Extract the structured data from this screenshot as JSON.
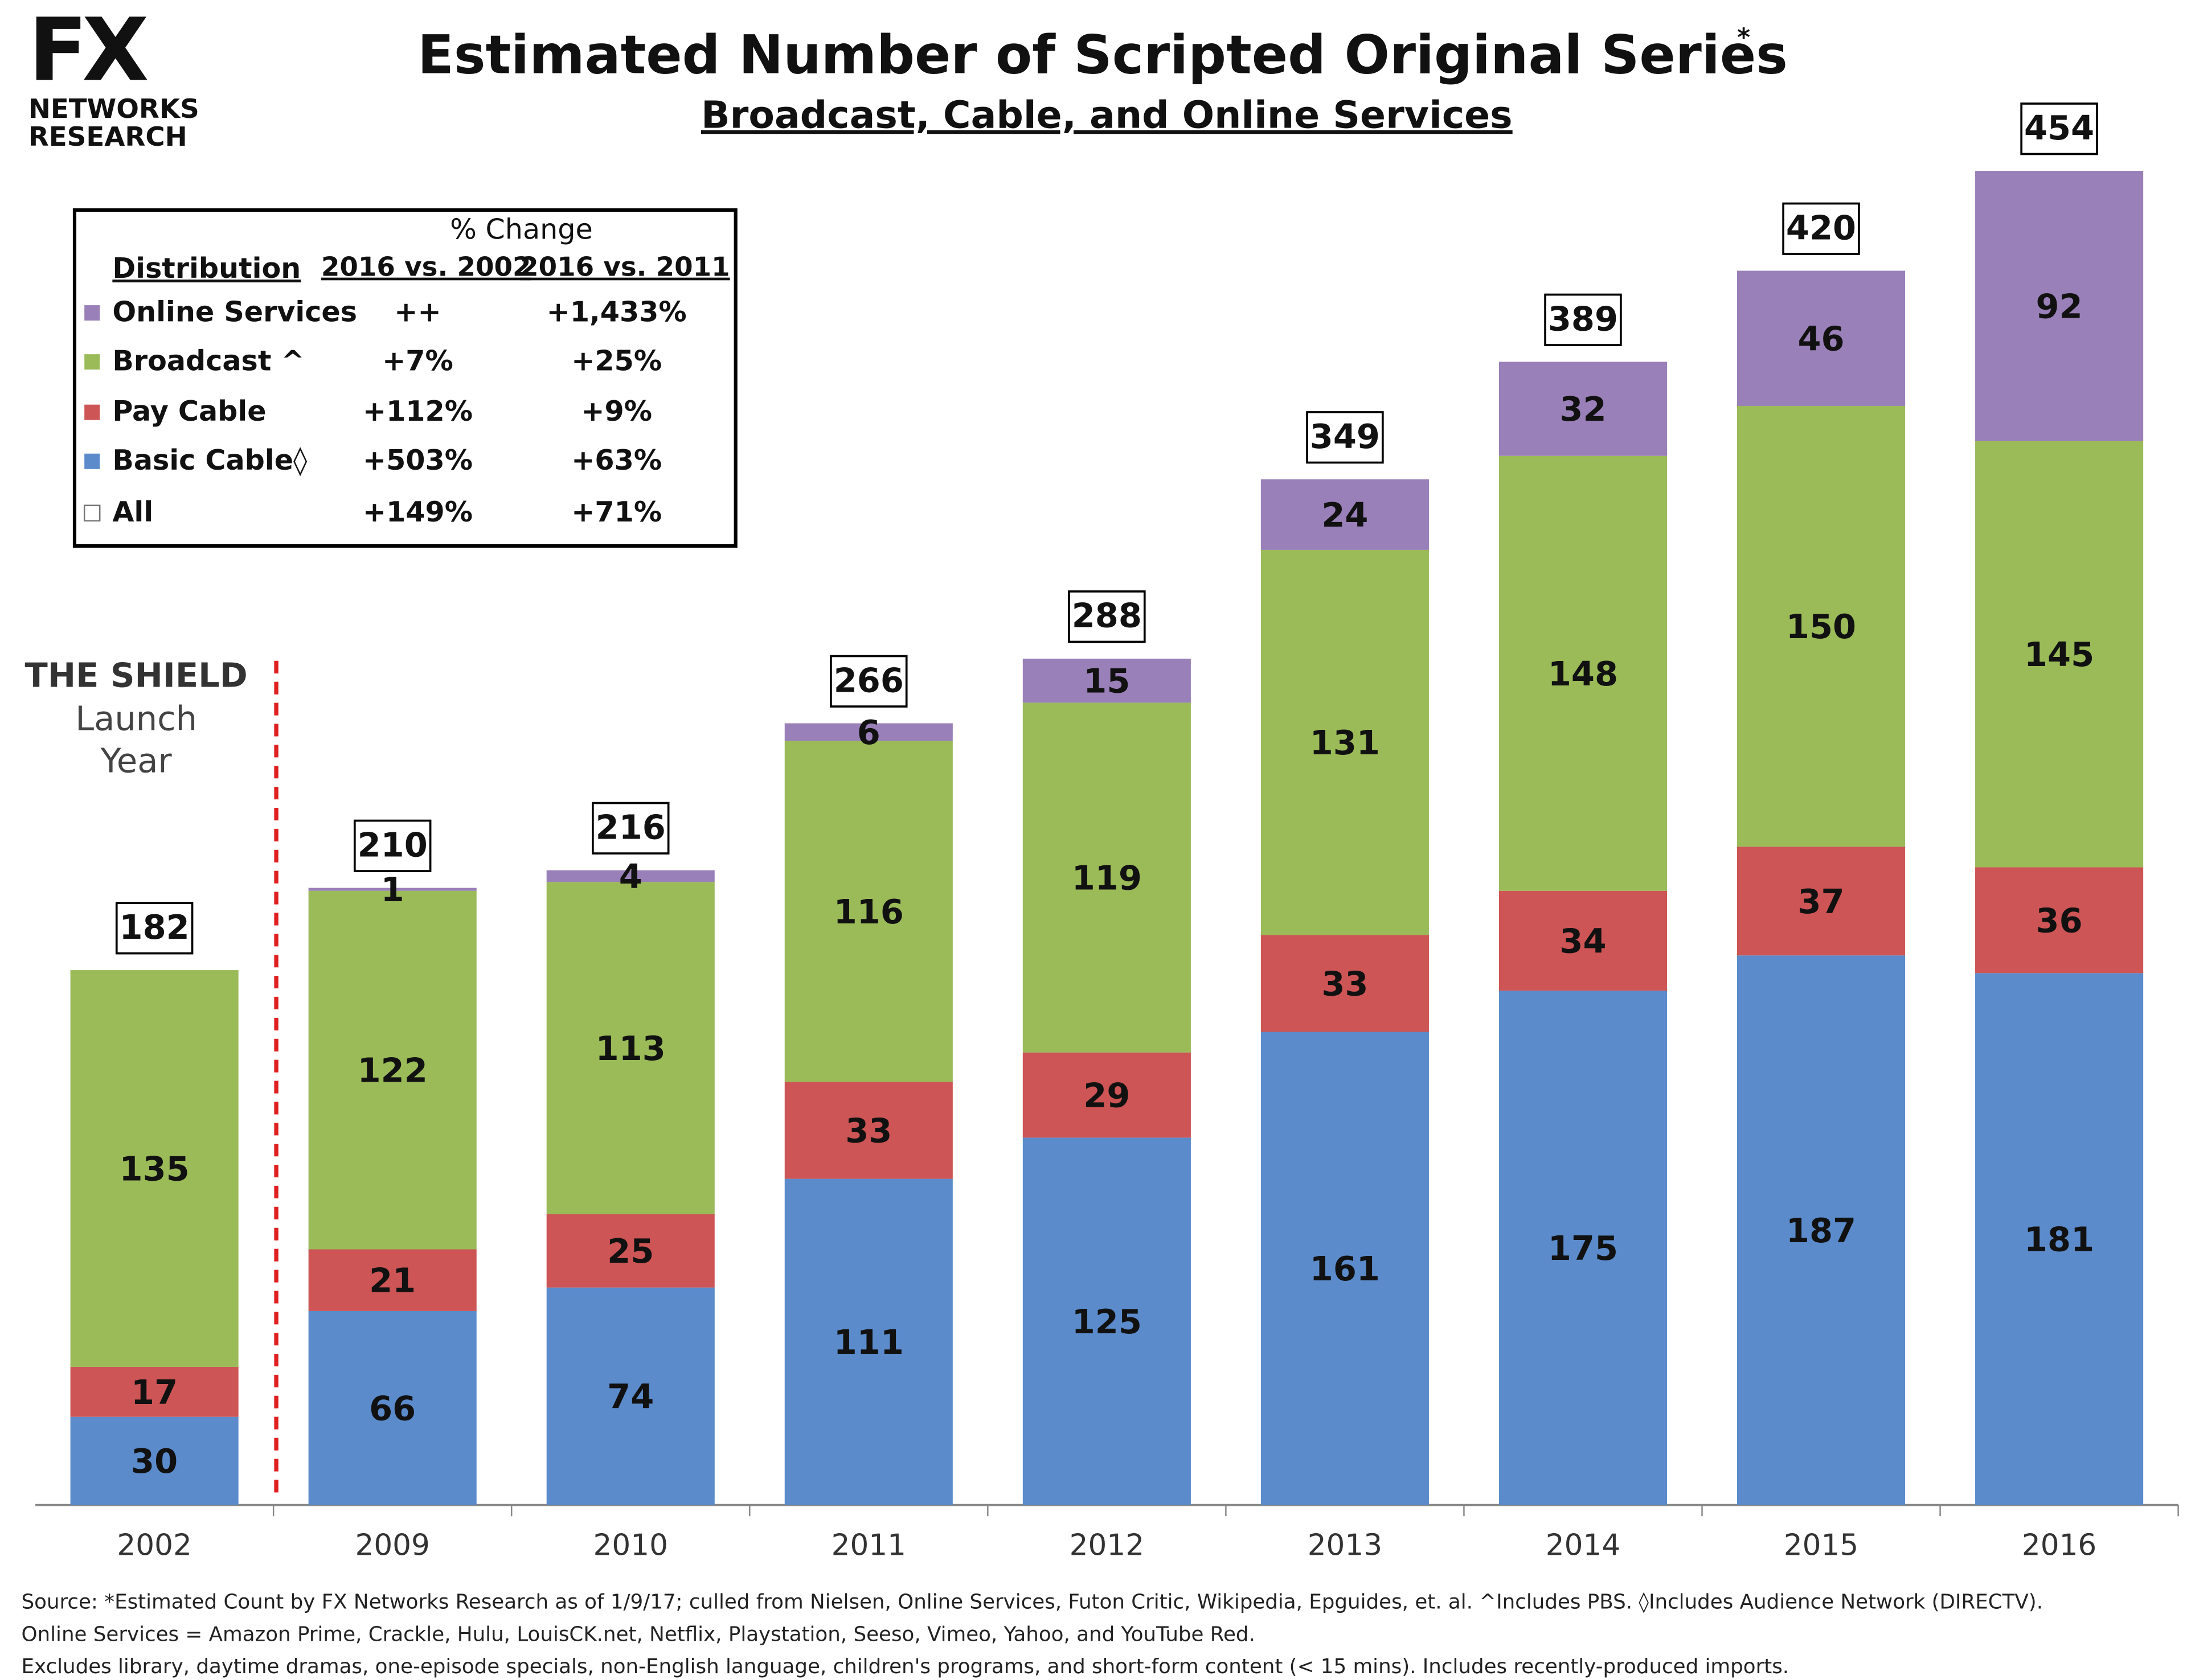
{
  "logo": {
    "mark": "FX",
    "line1": "NETWORKS",
    "line2": "RESEARCH"
  },
  "chart_data": {
    "type": "stacked-bar",
    "title": "Estimated Number of Scripted Original Series",
    "title_mark": "*",
    "subtitle": "Broadcast, Cable, and Online Services",
    "categories": [
      "2002",
      "2009",
      "2010",
      "2011",
      "2012",
      "2013",
      "2014",
      "2015",
      "2016"
    ],
    "series": [
      {
        "name": "Basic Cable◊",
        "color": "#5b8bcb",
        "values": [
          30,
          66,
          74,
          111,
          125,
          161,
          175,
          187,
          181
        ],
        "change": [
          "+503%",
          "+63%"
        ]
      },
      {
        "name": "Pay Cable",
        "color": "#cd5555",
        "values": [
          17,
          21,
          25,
          33,
          29,
          33,
          34,
          37,
          36
        ],
        "change": [
          "+112%",
          "+9%"
        ]
      },
      {
        "name": "Broadcast ^",
        "color": "#9bbb59",
        "values": [
          135,
          122,
          113,
          116,
          119,
          131,
          148,
          150,
          145
        ],
        "change": [
          "+7%",
          "+25%"
        ]
      },
      {
        "name": "Online Services",
        "color": "#9a80b8",
        "values": [
          null,
          1,
          4,
          6,
          15,
          24,
          32,
          46,
          92
        ],
        "change": [
          "++",
          "+1,433%"
        ]
      }
    ],
    "totals": [
      182,
      210,
      216,
      266,
      288,
      349,
      389,
      420,
      454
    ],
    "table": {
      "title": "% Change",
      "header": [
        "Distribution",
        "2016 vs. 2002",
        "2016 vs. 2011"
      ],
      "all_label": "All",
      "all_change": [
        "+149%",
        "+71%"
      ]
    },
    "annotation": {
      "title": "THE SHIELD",
      "line1": "Launch",
      "line2": "Year"
    },
    "source": [
      "Source:  *Estimated Count by FX Networks Research as of 1/9/17; culled from Nielsen, Online Services, Futon Critic, Wikipedia, Epguides, et. al.  ^Includes PBS.  ◊Includes Audience Network (DIRECTV).",
      "Online Services = Amazon Prime, Crackle, Hulu, LouisCK.net, Netflix, Playstation, Seeso, Vimeo, Yahoo, and YouTube Red.",
      "Excludes library, daytime dramas, one-episode specials, non-English language, children's programs, and short-form content (< 15 mins).  Includes recently-produced imports."
    ]
  }
}
